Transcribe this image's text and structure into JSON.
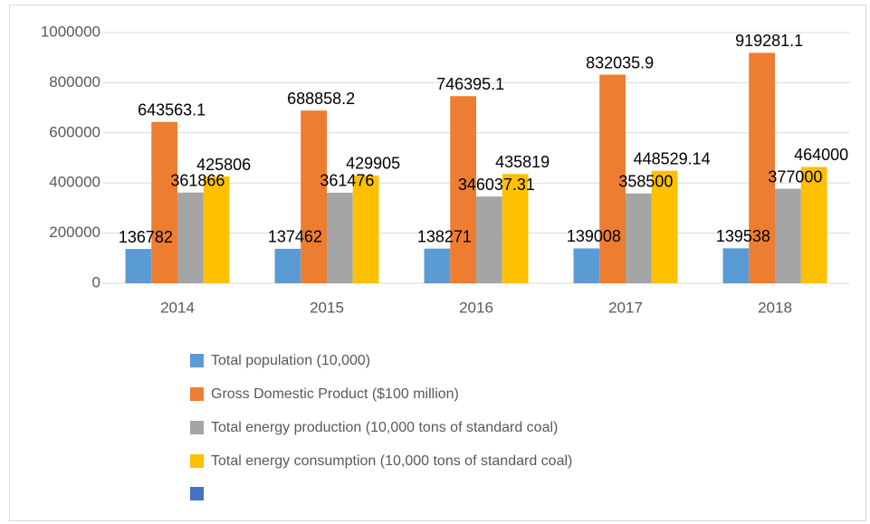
{
  "chart_data": {
    "type": "bar",
    "categories": [
      "2014",
      "2015",
      "2016",
      "2017",
      "2018"
    ],
    "series": [
      {
        "name": "Total population (10,000)",
        "color": "#5b9bd5",
        "values": [
          136782,
          137462,
          138271,
          139008,
          139538
        ]
      },
      {
        "name": "Gross Domestic Product ($100 million)",
        "color": "#ed7d31",
        "values": [
          643563.1,
          688858.2,
          746395.1,
          832035.9,
          919281.1
        ]
      },
      {
        "name": "Total energy production (10,000 tons of standard coal)",
        "color": "#a5a5a5",
        "values": [
          361866,
          361476,
          346037.31,
          358500,
          377000
        ]
      },
      {
        "name": "Total energy consumption (10,000 tons of standard coal)",
        "color": "#ffc000",
        "values": [
          425806,
          429905,
          435819,
          448529.14,
          464000
        ]
      }
    ],
    "ylim": [
      0,
      1000000
    ],
    "yticks": [
      0,
      200000,
      400000,
      600000,
      800000,
      1000000
    ],
    "grid": true
  }
}
